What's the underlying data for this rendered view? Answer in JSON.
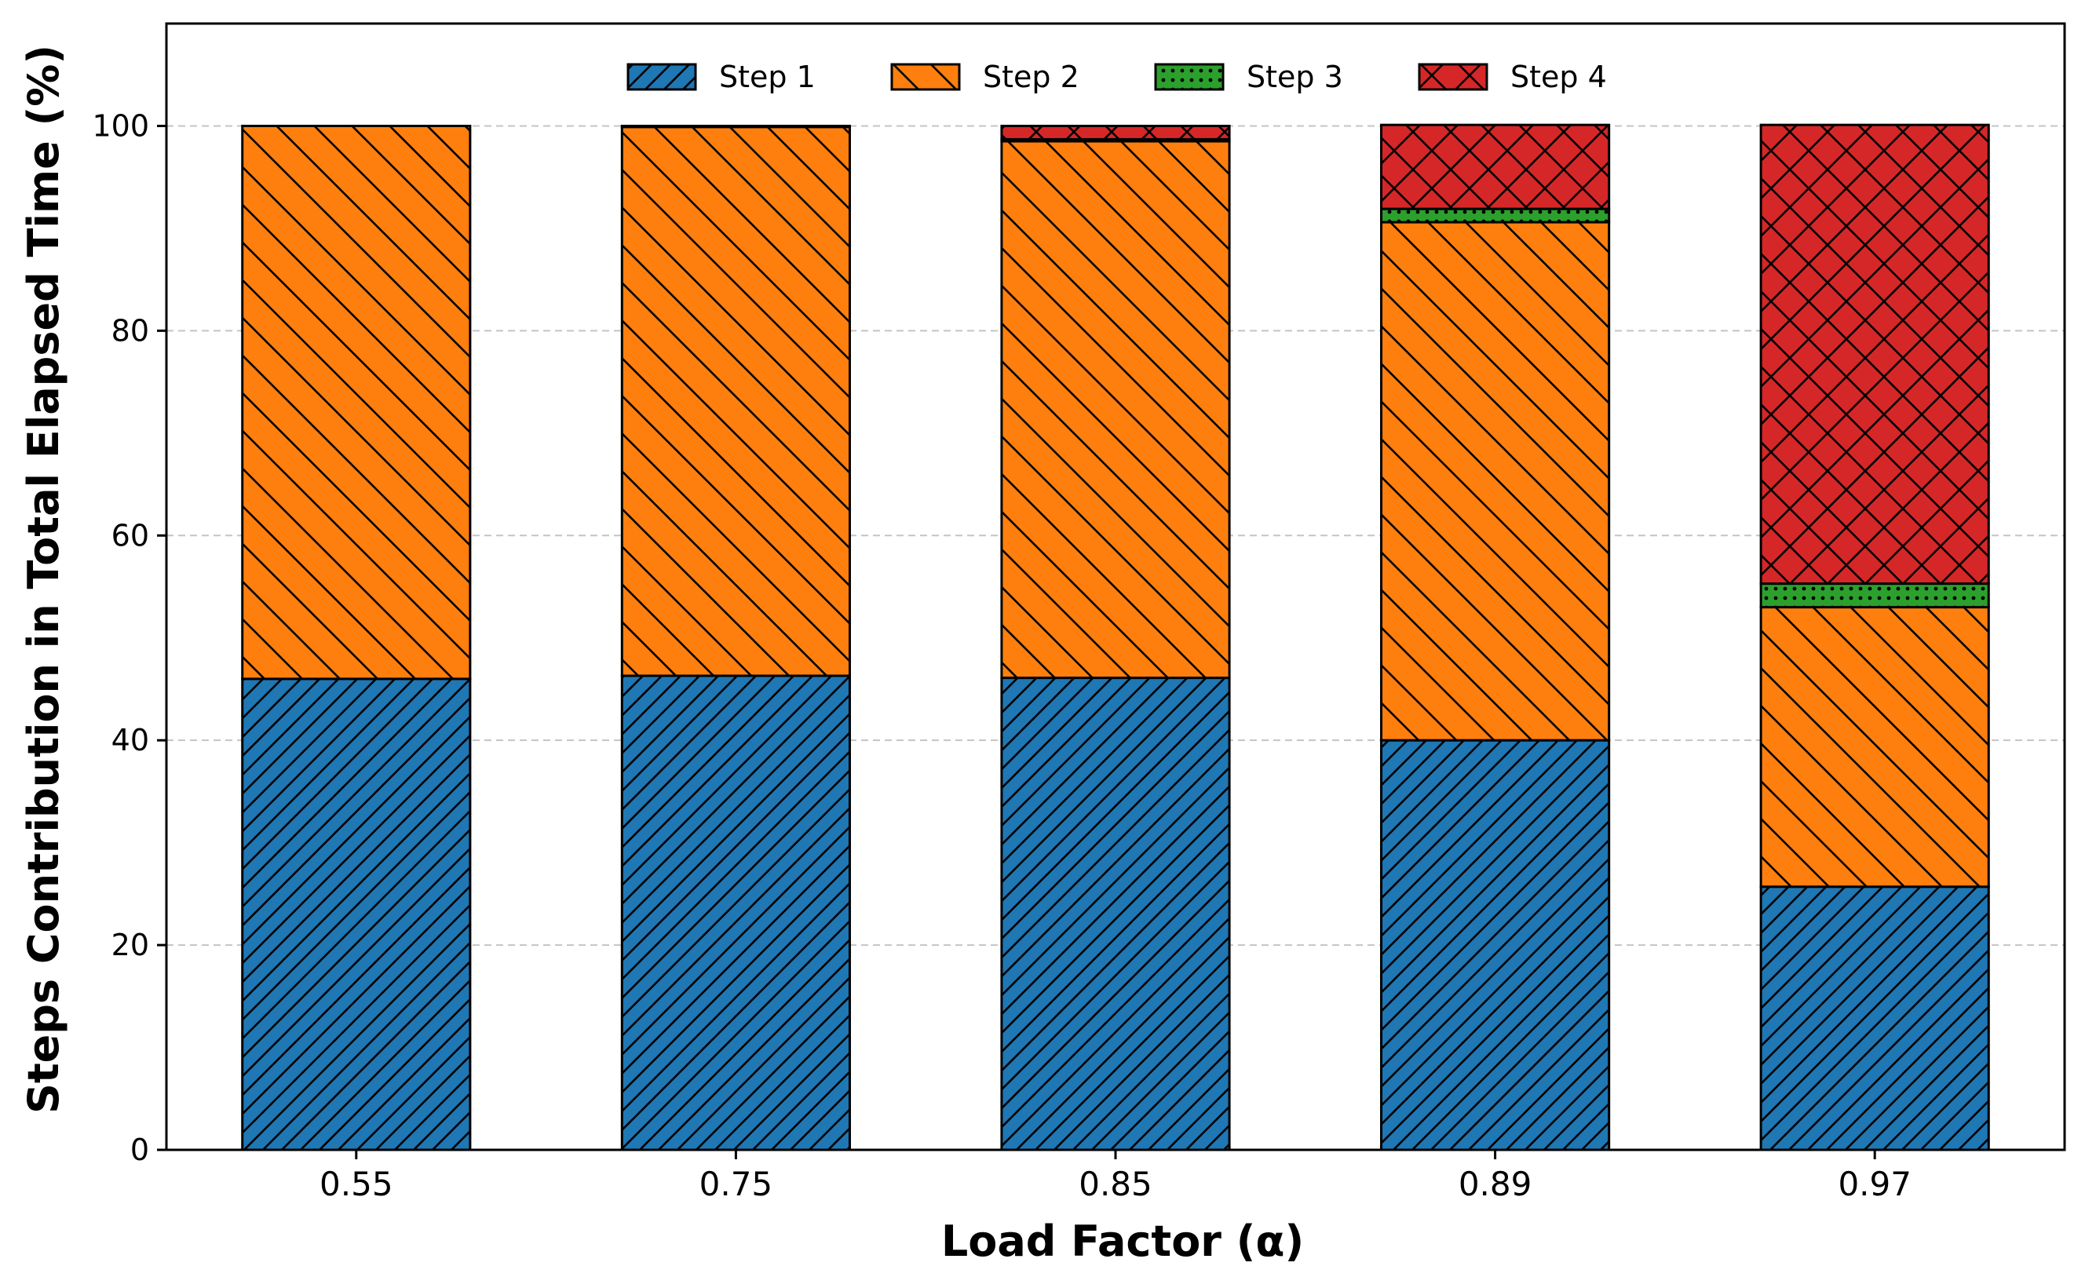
{
  "chart_data": {
    "type": "bar",
    "stacked": true,
    "categories": [
      "0.55",
      "0.75",
      "0.85",
      "0.89",
      "0.97"
    ],
    "series": [
      {
        "name": "Step 1",
        "values": [
          46.0,
          46.3,
          46.1,
          40.0,
          25.7
        ],
        "color": "#1f77b4",
        "hatch": "////"
      },
      {
        "name": "Step 2",
        "values": [
          54.0,
          53.6,
          52.4,
          50.6,
          27.3
        ],
        "color": "#ff7f0e",
        "hatch": "\\\\\\\\"
      },
      {
        "name": "Step 3",
        "values": [
          0.0,
          0.0,
          0.2,
          1.3,
          2.3
        ],
        "color": "#2ca02c",
        "hatch": "...."
      },
      {
        "name": "Step 4",
        "values": [
          0.0,
          0.1,
          1.3,
          8.2,
          44.8
        ],
        "color": "#d62728",
        "hatch": "xx"
      }
    ],
    "xlabel": "Load Factor (α)",
    "ylabel": "Steps Contribution in Total Elapsed Time (%)",
    "ylim": [
      0,
      110
    ],
    "yticks": [
      0,
      20,
      40,
      60,
      80,
      100
    ],
    "grid": "y-dashed",
    "legend": "top-center"
  }
}
